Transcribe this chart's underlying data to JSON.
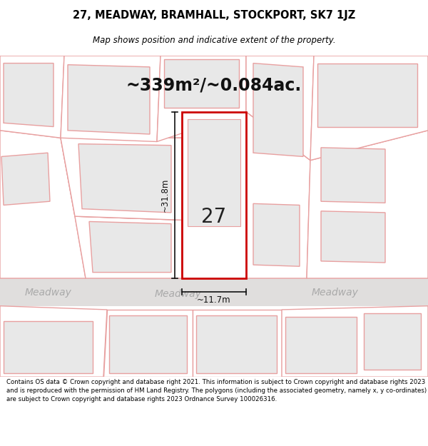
{
  "title_line1": "27, MEADWAY, BRAMHALL, STOCKPORT, SK7 1JZ",
  "title_line2": "Map shows position and indicative extent of the property.",
  "area_text": "~339m²/~0.084ac.",
  "property_number": "27",
  "dim_height": "~31.8m",
  "dim_width": "~11.7m",
  "footer_text": "Contains OS data © Crown copyright and database right 2021. This information is subject to Crown copyright and database rights 2023 and is reproduced with the permission of HM Land Registry. The polygons (including the associated geometry, namely x, y co-ordinates) are subject to Crown copyright and database rights 2023 Ordnance Survey 100026316.",
  "road_label": "Meadway",
  "map_bg": "#ffffff",
  "plot_fill": "#ffffff",
  "plot_bg_fill": "#e8e8e8",
  "plot_outline": "#e8a0a0",
  "highlight_fill": "#ffffff",
  "highlight_outline": "#cc0000",
  "footer_bg": "#ffffff",
  "dim_line_color": "#111111",
  "road_band_color": "#e0dedd",
  "road_text_color": "#aaaaaa"
}
